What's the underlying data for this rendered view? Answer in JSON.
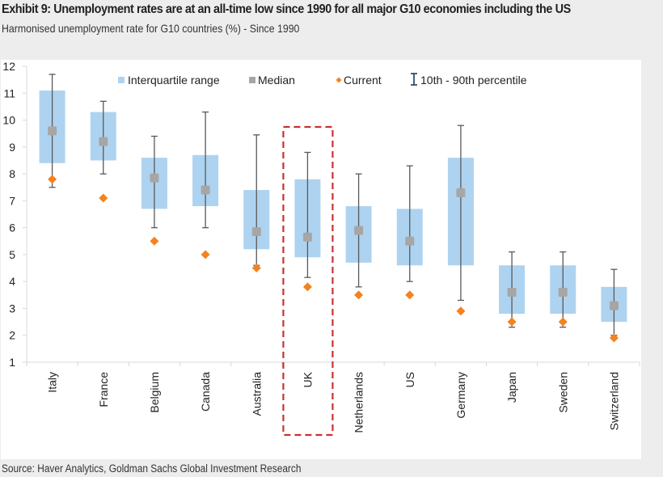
{
  "header": {
    "title": "Exhibit 9: Unemployment rates are at an all-time low since 1990 for all major G10 economies including the US",
    "subtitle": "Harmonised unemployment rate for G10 countries (%) - Since 1990"
  },
  "footer": {
    "source": "Source: Haver Analytics, Goldman Sachs Global Investment Research"
  },
  "colors": {
    "iqr": "#aed3f0",
    "median": "#a6a6a6",
    "current": "#f5821f",
    "whisker": "#595959",
    "highlight": "#c83232",
    "axis": "#d9d9d9",
    "text": "#222222"
  },
  "chart_data": {
    "type": "box",
    "title": "Exhibit 9: Unemployment rates are at an all-time low since 1990 for all major G10 economies including the US",
    "subtitle": "Harmonised unemployment rate for G10 countries (%) - Since 1990",
    "xlabel": "",
    "ylabel": "",
    "ylim": [
      1,
      12
    ],
    "yticks": [
      1,
      2,
      3,
      4,
      5,
      6,
      7,
      8,
      9,
      10,
      11,
      12
    ],
    "grid": false,
    "legend_position": "top",
    "legend": [
      {
        "key": "iqr",
        "label": "Interquartile range"
      },
      {
        "key": "median",
        "label": "Median"
      },
      {
        "key": "current",
        "label": "Current"
      },
      {
        "key": "whisker",
        "label": "10th - 90th percentile"
      }
    ],
    "highlighted_category": "UK",
    "categories": [
      "Italy",
      "France",
      "Belgium",
      "Canada",
      "Australia",
      "UK",
      "Netherlands",
      "US",
      "Germany",
      "Japan",
      "Sweden",
      "Switzerland"
    ],
    "series": [
      {
        "name": "Interquartile range (25th)",
        "values": [
          8.4,
          8.5,
          6.7,
          6.8,
          5.2,
          4.9,
          4.7,
          4.6,
          4.6,
          2.8,
          2.8,
          2.5
        ]
      },
      {
        "name": "Interquartile range (75th)",
        "values": [
          11.1,
          10.3,
          8.6,
          8.7,
          7.4,
          7.8,
          6.8,
          6.7,
          8.6,
          4.6,
          4.6,
          3.8
        ]
      },
      {
        "name": "Median",
        "values": [
          9.6,
          9.2,
          7.85,
          7.4,
          5.85,
          5.65,
          5.9,
          5.5,
          7.3,
          3.6,
          3.6,
          3.1
        ]
      },
      {
        "name": "Current",
        "values": [
          7.8,
          7.1,
          5.5,
          5.0,
          4.5,
          3.8,
          3.5,
          3.5,
          2.9,
          2.5,
          2.5,
          1.9
        ]
      },
      {
        "name": "10th percentile",
        "values": [
          7.5,
          8.0,
          6.0,
          6.0,
          4.6,
          4.15,
          3.8,
          4.0,
          3.3,
          2.3,
          2.3,
          2.0
        ]
      },
      {
        "name": "90th percentile",
        "values": [
          11.7,
          10.7,
          9.4,
          10.3,
          9.45,
          8.8,
          8.0,
          8.3,
          9.8,
          5.1,
          5.1,
          4.45
        ]
      }
    ]
  }
}
